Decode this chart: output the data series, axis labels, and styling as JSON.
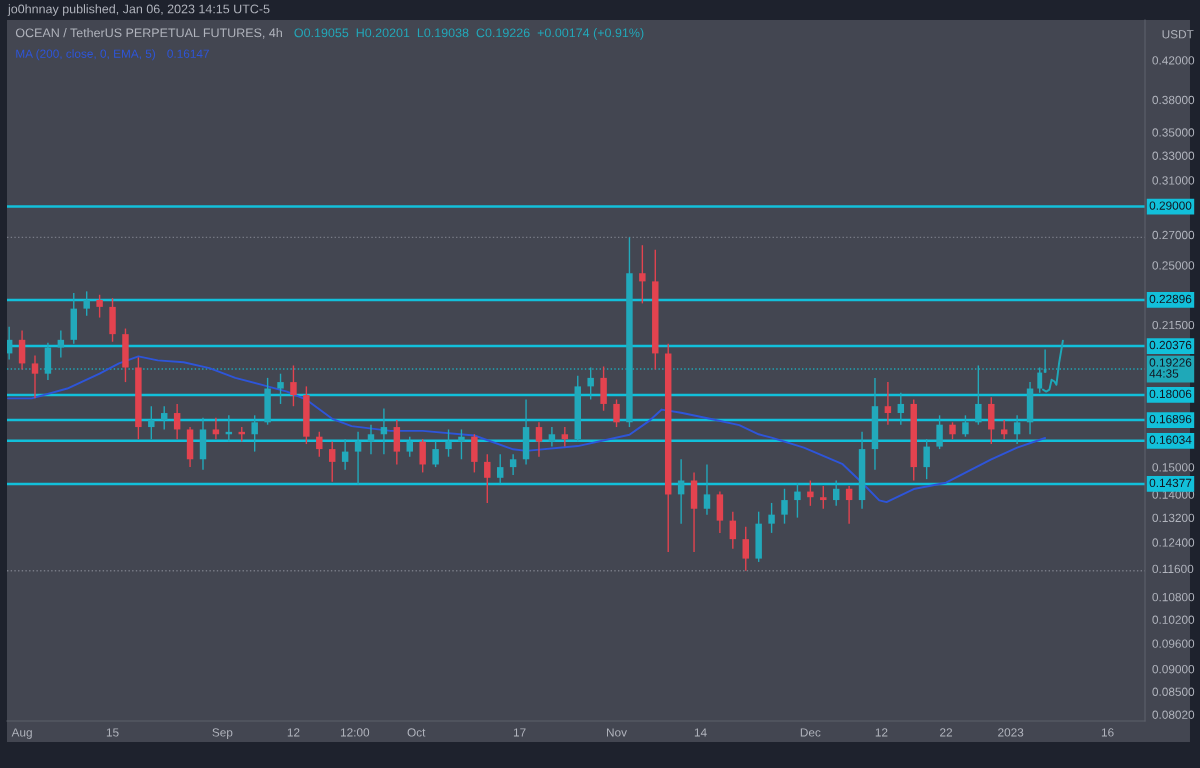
{
  "chart_data": {
    "type": "candlestick",
    "title": "OCEAN / TetherUS PERPETUAL FUTURES, 4h",
    "ylabel": "USDT",
    "annotations": [
      "jo0hnnay published, Jan 06, 2023 14:15 UTC-5",
      "O0.19055  H0.20201  L0.19038  C0.19226  +0.00174 (+0.91%)",
      "0.16147"
    ],
    "x": [
      "2022-07-30",
      "2022-08-01",
      "2022-08-03",
      "2022-08-05",
      "2022-08-07",
      "2022-08-09",
      "2022-08-11",
      "2022-08-13",
      "2022-08-15",
      "2022-08-17",
      "2022-08-19",
      "2022-08-21",
      "2022-08-23",
      "2022-08-25",
      "2022-08-27",
      "2022-08-29",
      "2022-08-31",
      "2022-09-02",
      "2022-09-04",
      "2022-09-06",
      "2022-09-08",
      "2022-09-10",
      "2022-09-12",
      "2022-09-14",
      "2022-09-16",
      "2022-09-18",
      "2022-09-20",
      "2022-09-22",
      "2022-09-24",
      "2022-09-26",
      "2022-09-28",
      "2022-09-30",
      "2022-10-02",
      "2022-10-04",
      "2022-10-06",
      "2022-10-08",
      "2022-10-10",
      "2022-10-12",
      "2022-10-14",
      "2022-10-16",
      "2022-10-18",
      "2022-10-20",
      "2022-10-22",
      "2022-10-24",
      "2022-10-26",
      "2022-10-28",
      "2022-10-30",
      "2022-11-01",
      "2022-11-03",
      "2022-11-05",
      "2022-11-07",
      "2022-11-09",
      "2022-11-11",
      "2022-11-13",
      "2022-11-15",
      "2022-11-17",
      "2022-11-19",
      "2022-11-21",
      "2022-11-23",
      "2022-11-25",
      "2022-11-27",
      "2022-11-29",
      "2022-12-01",
      "2022-12-03",
      "2022-12-05",
      "2022-12-07",
      "2022-12-09",
      "2022-12-11",
      "2022-12-13",
      "2022-12-15",
      "2022-12-17",
      "2022-12-19",
      "2022-12-21",
      "2022-12-23",
      "2022-12-25",
      "2022-12-27",
      "2022-12-29",
      "2022-12-31",
      "2023-01-02",
      "2023-01-04",
      "2023-01-05T12:00",
      "2023-01-06T08:00"
    ],
    "ohlc": [
      [
        0.2,
        0.214,
        0.197,
        0.207
      ],
      [
        0.207,
        0.212,
        0.192,
        0.195
      ],
      [
        0.195,
        0.199,
        0.1785,
        0.19
      ],
      [
        0.19,
        0.2055,
        0.187,
        0.203
      ],
      [
        0.203,
        0.212,
        0.198,
        0.207
      ],
      [
        0.207,
        0.233,
        0.205,
        0.224
      ],
      [
        0.224,
        0.234,
        0.22,
        0.229
      ],
      [
        0.229,
        0.232,
        0.219,
        0.225
      ],
      [
        0.225,
        0.23,
        0.206,
        0.21
      ],
      [
        0.21,
        0.213,
        0.186,
        0.193
      ],
      [
        0.193,
        0.198,
        0.161,
        0.166
      ],
      [
        0.166,
        0.175,
        0.161,
        0.169
      ],
      [
        0.169,
        0.175,
        0.165,
        0.172
      ],
      [
        0.172,
        0.176,
        0.161,
        0.165
      ],
      [
        0.165,
        0.166,
        0.15,
        0.153
      ],
      [
        0.153,
        0.17,
        0.149,
        0.165
      ],
      [
        0.165,
        0.17,
        0.161,
        0.163
      ],
      [
        0.163,
        0.171,
        0.16,
        0.164
      ],
      [
        0.164,
        0.166,
        0.16,
        0.163
      ],
      [
        0.163,
        0.171,
        0.156,
        0.168
      ],
      [
        0.168,
        0.188,
        0.167,
        0.183
      ],
      [
        0.183,
        0.19,
        0.176,
        0.186
      ],
      [
        0.186,
        0.194,
        0.175,
        0.18
      ],
      [
        0.18,
        0.184,
        0.159,
        0.162
      ],
      [
        0.162,
        0.164,
        0.154,
        0.157
      ],
      [
        0.157,
        0.16,
        0.1445,
        0.152
      ],
      [
        0.152,
        0.161,
        0.149,
        0.156
      ],
      [
        0.156,
        0.164,
        0.1435,
        0.16
      ],
      [
        0.16,
        0.167,
        0.155,
        0.163
      ],
      [
        0.163,
        0.174,
        0.155,
        0.166
      ],
      [
        0.166,
        0.169,
        0.151,
        0.156
      ],
      [
        0.156,
        0.162,
        0.154,
        0.16
      ],
      [
        0.16,
        0.161,
        0.148,
        0.151
      ],
      [
        0.151,
        0.16,
        0.15,
        0.157
      ],
      [
        0.157,
        0.165,
        0.154,
        0.16
      ],
      [
        0.16,
        0.165,
        0.153,
        0.162
      ],
      [
        0.162,
        0.163,
        0.148,
        0.152
      ],
      [
        0.152,
        0.155,
        0.137,
        0.146
      ],
      [
        0.146,
        0.155,
        0.144,
        0.15
      ],
      [
        0.15,
        0.155,
        0.147,
        0.153
      ],
      [
        0.153,
        0.178,
        0.151,
        0.166
      ],
      [
        0.166,
        0.168,
        0.154,
        0.16
      ],
      [
        0.16,
        0.166,
        0.158,
        0.163
      ],
      [
        0.163,
        0.166,
        0.158,
        0.161
      ],
      [
        0.161,
        0.189,
        0.16,
        0.184
      ],
      [
        0.184,
        0.193,
        0.178,
        0.188
      ],
      [
        0.188,
        0.1935,
        0.173,
        0.176
      ],
      [
        0.176,
        0.178,
        0.166,
        0.168
      ],
      [
        0.168,
        0.2683,
        0.166,
        0.245
      ],
      [
        0.245,
        0.263,
        0.227,
        0.24
      ],
      [
        0.24,
        0.26,
        0.192,
        0.2
      ],
      [
        0.2,
        0.205,
        0.121,
        0.14
      ],
      [
        0.14,
        0.153,
        0.13,
        0.145
      ],
      [
        0.145,
        0.148,
        0.121,
        0.135
      ],
      [
        0.135,
        0.151,
        0.133,
        0.14
      ],
      [
        0.14,
        0.141,
        0.127,
        0.131
      ],
      [
        0.131,
        0.134,
        0.122,
        0.125
      ],
      [
        0.125,
        0.129,
        0.1154,
        0.119
      ],
      [
        0.119,
        0.134,
        0.118,
        0.13
      ],
      [
        0.13,
        0.137,
        0.127,
        0.133
      ],
      [
        0.133,
        0.142,
        0.13,
        0.138
      ],
      [
        0.138,
        0.144,
        0.132,
        0.141
      ],
      [
        0.141,
        0.145,
        0.136,
        0.139
      ],
      [
        0.139,
        0.143,
        0.135,
        0.138
      ],
      [
        0.138,
        0.145,
        0.136,
        0.142
      ],
      [
        0.142,
        0.143,
        0.13,
        0.138
      ],
      [
        0.138,
        0.164,
        0.135,
        0.157
      ],
      [
        0.157,
        0.188,
        0.149,
        0.175
      ],
      [
        0.175,
        0.186,
        0.167,
        0.172
      ],
      [
        0.172,
        0.181,
        0.167,
        0.176
      ],
      [
        0.176,
        0.178,
        0.145,
        0.15
      ],
      [
        0.15,
        0.161,
        0.1455,
        0.158
      ],
      [
        0.158,
        0.171,
        0.157,
        0.167
      ],
      [
        0.167,
        0.168,
        0.161,
        0.163
      ],
      [
        0.163,
        0.171,
        0.162,
        0.168
      ],
      [
        0.168,
        0.194,
        0.167,
        0.176
      ],
      [
        0.176,
        0.179,
        0.159,
        0.165
      ],
      [
        0.165,
        0.169,
        0.161,
        0.163
      ],
      [
        0.163,
        0.171,
        0.159,
        0.168
      ],
      [
        0.168,
        0.186,
        0.163,
        0.183
      ],
      [
        0.183,
        0.193,
        0.181,
        0.19055
      ],
      [
        0.19055,
        0.20201,
        0.19038,
        0.19226
      ]
    ],
    "colors": [
      "#22a9bb",
      "#e3434f",
      "#e3434f",
      "#22a9bb",
      "#22a9bb",
      "#22a9bb",
      "#22a9bb",
      "#e3434f",
      "#e3434f",
      "#e3434f",
      "#e3434f",
      "#22a9bb",
      "#22a9bb",
      "#e3434f",
      "#e3434f",
      "#22a9bb",
      "#e3434f",
      "#22a9bb",
      "#e3434f",
      "#22a9bb",
      "#22a9bb",
      "#22a9bb",
      "#e3434f",
      "#e3434f",
      "#e3434f",
      "#e3434f",
      "#22a9bb",
      "#22a9bb",
      "#22a9bb",
      "#22a9bb",
      "#e3434f",
      "#22a9bb",
      "#e3434f",
      "#22a9bb",
      "#22a9bb",
      "#22a9bb",
      "#e3434f",
      "#e3434f",
      "#22a9bb",
      "#22a9bb",
      "#22a9bb",
      "#e3434f",
      "#22a9bb",
      "#e3434f",
      "#22a9bb",
      "#22a9bb",
      "#e3434f",
      "#e3434f",
      "#22a9bb",
      "#e3434f",
      "#e3434f",
      "#e3434f",
      "#22a9bb",
      "#e3434f",
      "#22a9bb",
      "#e3434f",
      "#e3434f",
      "#e3434f",
      "#22a9bb",
      "#22a9bb",
      "#22a9bb",
      "#22a9bb",
      "#e3434f",
      "#e3434f",
      "#22a9bb",
      "#e3434f",
      "#22a9bb",
      "#22a9bb",
      "#e3434f",
      "#22a9bb",
      "#e3434f",
      "#22a9bb",
      "#22a9bb",
      "#e3434f",
      "#22a9bb",
      "#22a9bb",
      "#e3434f",
      "#e3434f",
      "#22a9bb",
      "#22a9bb",
      "#22a9bb",
      "#22a9bb"
    ],
    "series": [
      {
        "name": "MA (200, close, 0, EMA, 5)",
        "type": "line",
        "color": "#2e55d9",
        "x": [
          "2022-07-29T20:00",
          "2022-08-02T12:00",
          "2022-08-08",
          "2022-08-13",
          "2022-08-16",
          "2022-08-19",
          "2022-08-22",
          "2022-08-26",
          "2022-08-30",
          "2022-09-03",
          "2022-09-07",
          "2022-09-11",
          "2022-09-14",
          "2022-09-18",
          "2022-09-21",
          "2022-09-27",
          "2022-10-02",
          "2022-10-10",
          "2022-10-16",
          "2022-10-18",
          "2022-10-26",
          "2022-11-03",
          "2022-11-06",
          "2022-11-08",
          "2022-11-11",
          "2022-11-16",
          "2022-11-20",
          "2022-11-23",
          "2022-11-25",
          "2022-11-30",
          "2022-12-06",
          "2022-12-09",
          "2022-12-11T16:00",
          "2022-12-12T19:00",
          "2022-12-17",
          "2022-12-22",
          "2022-12-29",
          "2023-01-02",
          "2023-01-06T08:00"
        ],
        "values": [
          0.1785,
          0.1785,
          0.183,
          0.19,
          0.195,
          0.1985,
          0.1965,
          0.1956,
          0.1927,
          0.188,
          0.1848,
          0.1816,
          0.1779,
          0.1695,
          0.1664,
          0.1644,
          0.1644,
          0.1625,
          0.1569,
          0.1563,
          0.1582,
          0.1628,
          0.1685,
          0.1735,
          0.1721,
          0.1692,
          0.1668,
          0.163,
          0.1616,
          0.1576,
          0.1511,
          0.1442,
          0.1379,
          0.1373,
          0.1419,
          0.1442,
          0.153,
          0.1576,
          0.16147
        ]
      },
      {
        "type": "line",
        "color": "#1fa8b8",
        "x": [
          "2023-01-06T00:00",
          "2023-01-06T12:00",
          "2023-01-07T00:00",
          "2023-01-07T08:00",
          "2023-01-07T18:00",
          "2023-01-08T02:00",
          "2023-01-08T12:00",
          "2023-01-09T02:00"
        ],
        "values": [
          0.1825,
          0.1816,
          0.1825,
          0.1871,
          0.1864,
          0.1848,
          0.1953,
          0.2065
        ]
      }
    ],
    "ref_lines": [
      {
        "axis": "y",
        "value": 0.29,
        "label": "0.29000",
        "color": "#12c0da"
      },
      {
        "axis": "y",
        "value": 0.22896,
        "label": "0.22896",
        "color": "#12c0da"
      },
      {
        "axis": "y",
        "value": 0.20376,
        "label": "0.20376",
        "color": "#12c0da"
      },
      {
        "axis": "y",
        "value": 0.18006,
        "label": "0.18006",
        "color": "#12c0da"
      },
      {
        "axis": "y",
        "value": 0.16896,
        "label": "0.16896",
        "color": "#12c0da"
      },
      {
        "axis": "y",
        "value": 0.16034,
        "label": "0.16034",
        "color": "#12c0da"
      },
      {
        "axis": "y",
        "value": 0.14377,
        "label": "0.14377",
        "color": "#12c0da"
      },
      {
        "axis": "y",
        "value": 0.19226,
        "label": "0.19226\n44:35",
        "color": "#1fa8b8",
        "line_style": "dotted"
      },
      {
        "axis": "y",
        "value": 0.2683,
        "color": "#787b86",
        "line_style": "dotted"
      },
      {
        "axis": "y",
        "value": 0.1154,
        "color": "#787b86",
        "line_style": "dotted"
      }
    ],
    "log": true,
    "ylim": [
      0.0789,
      0.465
    ],
    "yticks": [
      {
        "value": 0.42,
        "label": "0.42000"
      },
      {
        "value": 0.38,
        "label": "0.38000"
      },
      {
        "value": 0.35,
        "label": "0.35000"
      },
      {
        "value": 0.33,
        "label": "0.33000"
      },
      {
        "value": 0.31,
        "label": "0.31000"
      },
      {
        "value": 0.27,
        "label": "0.27000"
      },
      {
        "value": 0.25,
        "label": "0.25000"
      },
      {
        "value": 0.215,
        "label": "0.21500"
      },
      {
        "value": 0.15,
        "label": "0.15000"
      },
      {
        "value": 0.14,
        "label": "0.14000"
      },
      {
        "value": 0.132,
        "label": "0.13200"
      },
      {
        "value": 0.124,
        "label": "0.12400"
      },
      {
        "value": 0.116,
        "label": "0.11600"
      },
      {
        "value": 0.108,
        "label": "0.10800"
      },
      {
        "value": 0.102,
        "label": "0.10200"
      },
      {
        "value": 0.096,
        "label": "0.09600"
      },
      {
        "value": 0.09,
        "label": "0.09000"
      },
      {
        "value": 0.085,
        "label": "0.08500"
      },
      {
        "value": 0.0802,
        "label": "0.08020"
      }
    ],
    "xlim": [
      "2022-07-29T16:00",
      "2023-01-21T19:00"
    ],
    "xticks": [
      {
        "value": "2022-08-01",
        "label": "Aug"
      },
      {
        "value": "2022-08-15",
        "label": "15"
      },
      {
        "value": "2022-09-01",
        "label": "Sep"
      },
      {
        "value": "2022-09-12",
        "label": "12"
      },
      {
        "value": "2022-09-21T12:00",
        "label": "12:00"
      },
      {
        "value": "2022-10-01",
        "label": "Oct"
      },
      {
        "value": "2022-10-17",
        "label": "17"
      },
      {
        "value": "2022-11-01",
        "label": "Nov"
      },
      {
        "value": "2022-11-14",
        "label": "14"
      },
      {
        "value": "2022-12-01",
        "label": "Dec"
      },
      {
        "value": "2022-12-12",
        "label": "12"
      },
      {
        "value": "2022-12-22",
        "label": "22"
      },
      {
        "value": "2023-01-01",
        "label": "2023"
      },
      {
        "value": "2023-01-16",
        "label": "16"
      }
    ],
    "grid": false,
    "legend": "top left"
  }
}
